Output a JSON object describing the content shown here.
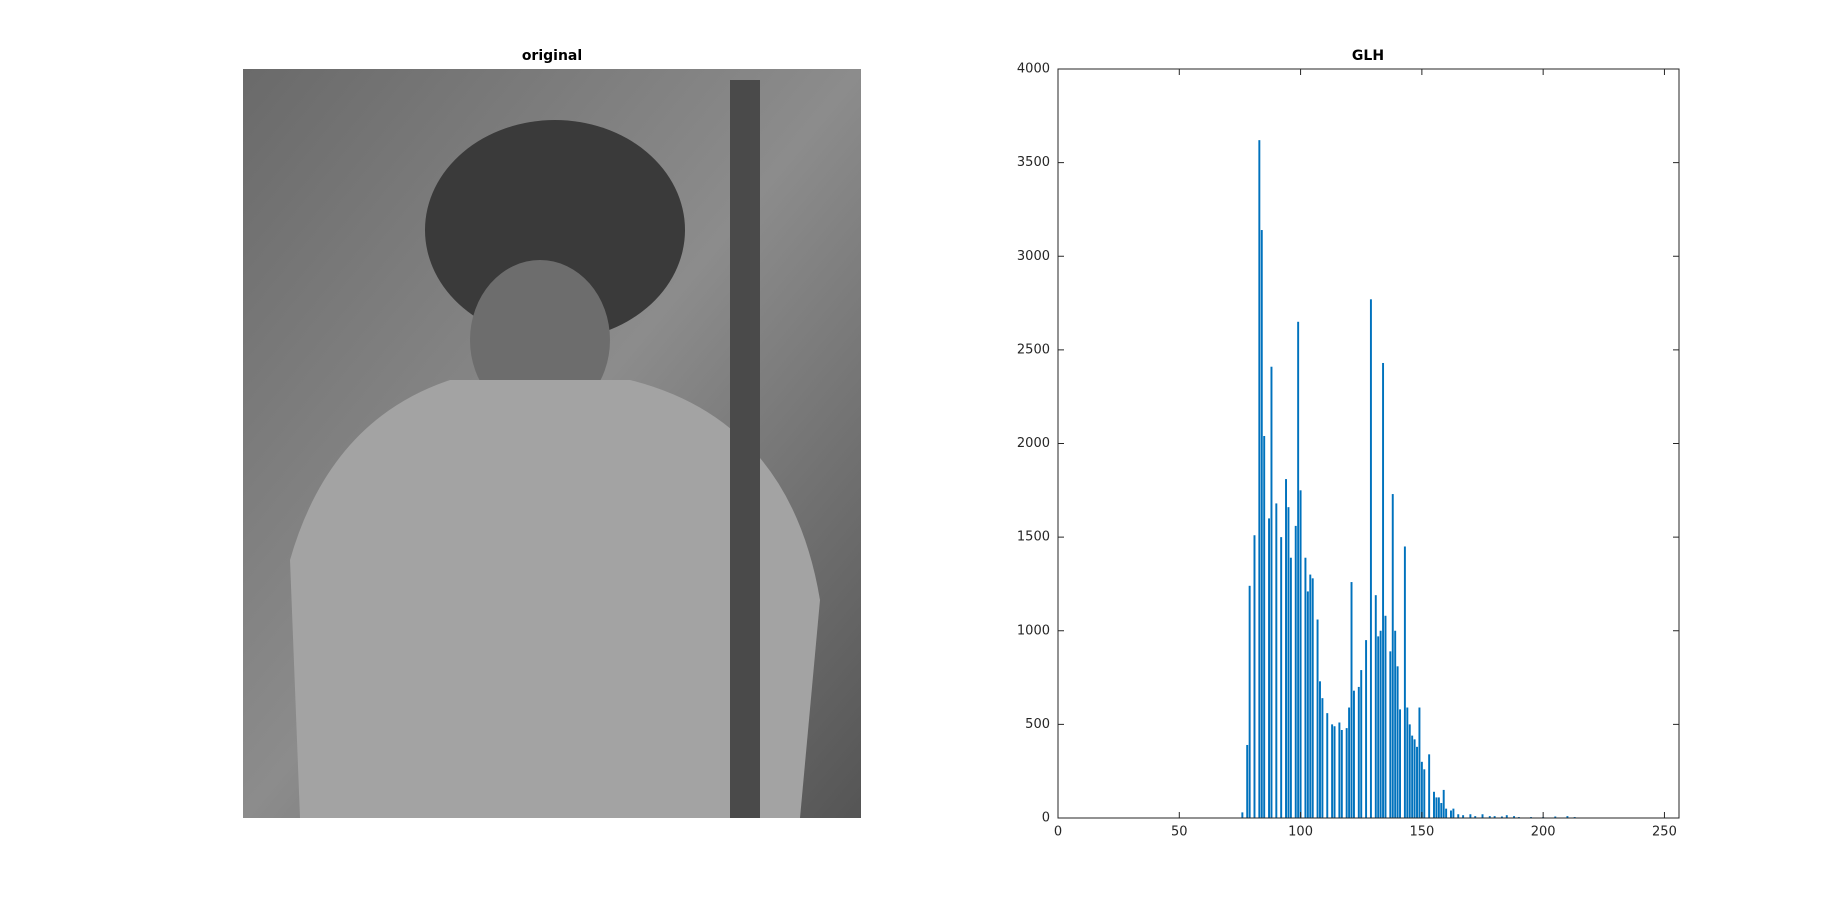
{
  "chart_data": [
    {
      "type": "image",
      "title": "original"
    },
    {
      "type": "bar",
      "title": "GLH",
      "color": "#0072bd",
      "x": [
        76,
        78,
        79,
        81,
        83,
        84,
        85,
        87,
        88,
        90,
        92,
        94,
        95,
        96,
        98,
        99,
        100,
        102,
        103,
        104,
        105,
        107,
        108,
        109,
        111,
        113,
        114,
        116,
        117,
        119,
        120,
        121,
        122,
        124,
        125,
        127,
        129,
        131,
        132,
        133,
        134,
        135,
        137,
        138,
        139,
        140,
        141,
        143,
        144,
        145,
        146,
        147,
        148,
        149,
        150,
        151,
        153,
        155,
        156,
        157,
        158,
        159,
        160,
        162,
        163,
        165,
        167,
        170,
        172,
        175,
        178,
        180,
        183,
        185,
        188,
        190,
        195,
        200,
        205,
        210,
        213
      ],
      "values": [
        30,
        390,
        1240,
        1510,
        3620,
        3140,
        2040,
        1600,
        2410,
        1680,
        1500,
        1810,
        1660,
        1390,
        1560,
        2650,
        1750,
        1390,
        1210,
        1300,
        1280,
        1060,
        730,
        640,
        560,
        500,
        490,
        510,
        470,
        480,
        590,
        1260,
        680,
        700,
        790,
        950,
        2770,
        1190,
        970,
        1000,
        2430,
        1080,
        890,
        1730,
        1000,
        810,
        580,
        1450,
        590,
        500,
        440,
        420,
        380,
        590,
        300,
        260,
        340,
        140,
        110,
        110,
        80,
        150,
        50,
        40,
        50,
        20,
        15,
        20,
        10,
        20,
        10,
        10,
        8,
        15,
        10,
        5,
        5,
        5,
        8,
        10,
        5
      ],
      "xlim": [
        0,
        256
      ],
      "ylim": [
        0,
        4000
      ],
      "xticks": [
        0,
        50,
        100,
        150,
        200,
        250
      ],
      "yticks": [
        0,
        500,
        1000,
        1500,
        2000,
        2500,
        3000,
        3500,
        4000
      ]
    }
  ]
}
